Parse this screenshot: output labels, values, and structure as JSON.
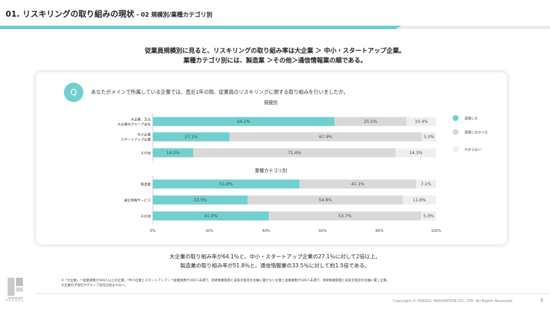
{
  "header": {
    "title": "01. リスキリングの取り組みの現状",
    "subtitle": " - 02 規模別/業種カテゴリ別"
  },
  "headline": {
    "line1": "従業員規模別に見ると、リスキリングの取り組み率は大企業 ＞ 中小・スタートアップ企業。",
    "line2": "業種カテゴリ別には、製造業 ＞その他＞通信情報業の順である。"
  },
  "question": {
    "badge": "Q",
    "text": "あなたがメインで所属している企業では、直近1年の間、従業員のリスキリングに関する取り組みを行いましたか。"
  },
  "chart_data": {
    "type": "bar",
    "orientation": "horizontal-stacked-100",
    "colors": {
      "実施した": "#72cfd0",
      "実施しなかった": "#d9d9d9",
      "わからない": "#efefef"
    },
    "legend": [
      "実施した",
      "実施しなかった",
      "わからない"
    ],
    "legend_position": "right",
    "x_ticks": [
      "0%",
      "20%",
      "40%",
      "60%",
      "80%",
      "100%"
    ],
    "xlim": [
      0,
      100
    ],
    "groups": [
      {
        "title": "規模別",
        "categories": [
          [
            "大企業、又は",
            "大企業のグループ会社"
          ],
          [
            "中小企業",
            "スタートアップ企業"
          ],
          [
            "その他"
          ]
        ],
        "series": [
          {
            "name": "実施した",
            "values": [
              64.1,
              27.1,
              14.3
            ],
            "labels": [
              "64.1%",
              "27.1%",
              "14.3%"
            ]
          },
          {
            "name": "実施しなかった",
            "values": [
              25.5,
              67.9,
              71.4
            ],
            "labels": [
              "25.5%",
              "67.9%",
              "71.4%"
            ]
          },
          {
            "name": "わからない",
            "values": [
              10.4,
              5.0,
              14.3
            ],
            "labels": [
              "10.4%",
              "5.0%",
              "14.3%"
            ]
          }
        ]
      },
      {
        "title": "業種カテゴリ別",
        "categories": [
          [
            "製造業"
          ],
          [
            "通信情報サービス"
          ],
          [
            "その他"
          ]
        ],
        "series": [
          {
            "name": "実施した",
            "values": [
              51.8,
              33.5,
              41.0
            ],
            "labels": [
              "51.8%",
              "33.5%",
              "41.0%"
            ]
          },
          {
            "name": "実施しなかった",
            "values": [
              41.1,
              54.8,
              53.7
            ],
            "labels": [
              "41.1%",
              "54.8%",
              "53.7%"
            ]
          },
          {
            "name": "わからない",
            "values": [
              7.1,
              11.6,
              5.3
            ],
            "labels": [
              "7.1%",
              "11.6%",
              "5.3%"
            ]
          }
        ]
      }
    ]
  },
  "summary": {
    "line1": "大企業の取り組み率が64.1％と、中小・スタートアップ企業の27.1％に対して2倍以上。",
    "line2": "製造業の取り組み率が51.8％と、通信情報業の33.5％に対して約1.5倍である。"
  },
  "footnote": {
    "line1": "※「大企業」＝従業員数が300人以上の企業。「中小企業とスタートアップ」＝従業員数が300人未満で、新規事業開発と成長を経営の主軸に置かない企業と従業員数が300人未満で、新規事業開発と成長を経営の主軸に置く企業。",
    "line2": "大企業の子会社やグループ会社は含まれない。"
  },
  "footer": {
    "copyright": "Copyright © PERSOL INNOVATION CO., LTD. All Rights Reserved.",
    "page": "5",
    "logo_text": "PERSOL"
  }
}
